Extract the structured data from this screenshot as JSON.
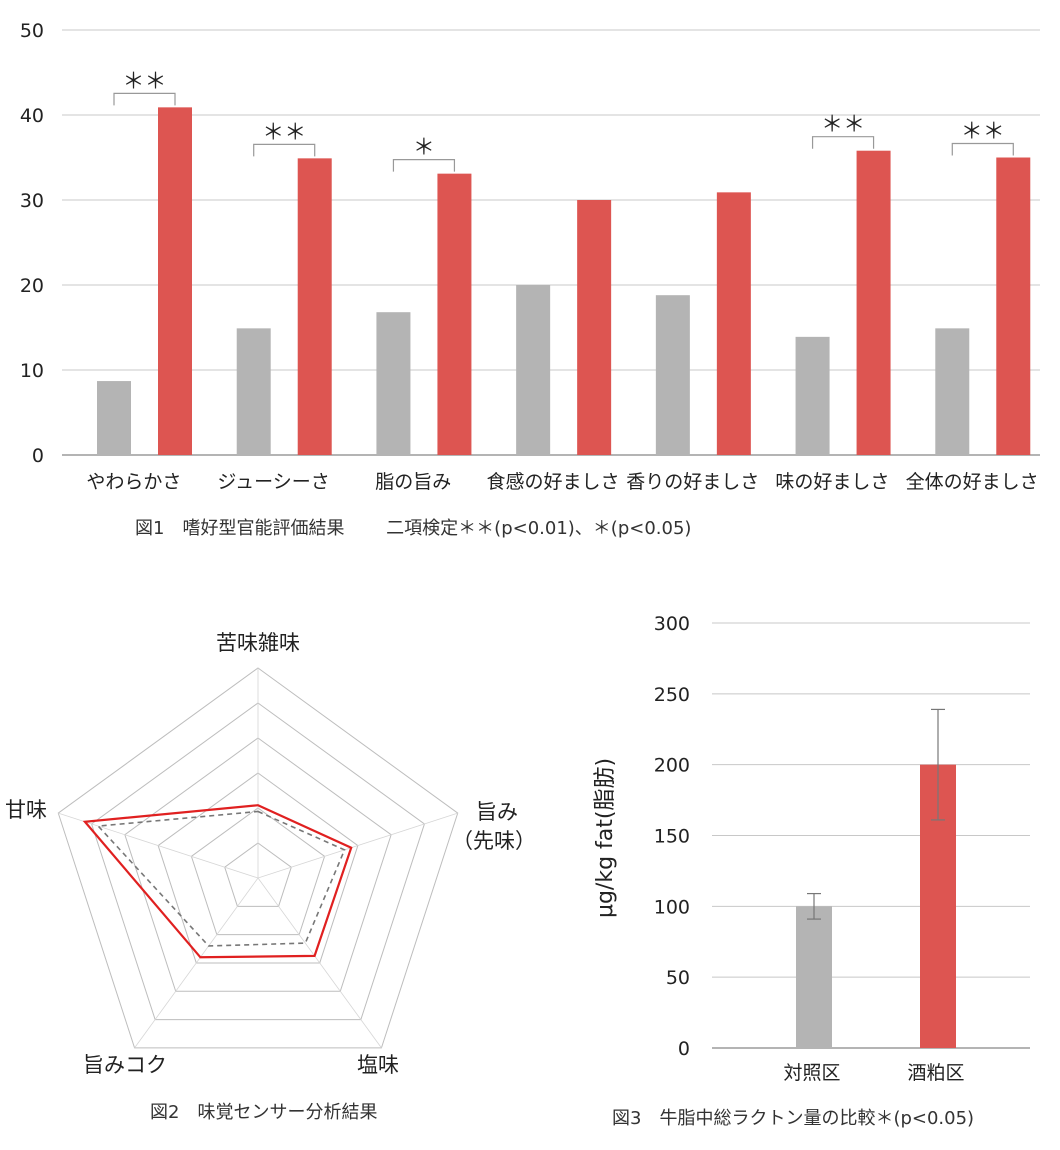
{
  "fig1": {
    "chart_data": {
      "type": "bar",
      "categories": [
        "やわらかさ",
        "ジューシーさ",
        "脂の旨み",
        "食感の好ましさ",
        "香りの好ましさ",
        "味の好ましさ",
        "全体の好ましさ"
      ],
      "series": [
        {
          "color": "#b4b4b4",
          "values": [
            8.7,
            14.9,
            16.8,
            20.0,
            18.8,
            13.9,
            14.9
          ]
        },
        {
          "color": "#dd5551",
          "values": [
            40.9,
            34.9,
            33.1,
            30.0,
            30.9,
            35.8,
            35.0
          ]
        }
      ],
      "significance": [
        "＊＊",
        "＊＊",
        "＊",
        "",
        "",
        "＊＊",
        "＊＊"
      ],
      "ylim": [
        0,
        50
      ],
      "yticks": [
        "0",
        "10",
        "20",
        "30",
        "40",
        "50"
      ],
      "grid": true
    },
    "caption": "図1　嗜好型官能評価結果　　 二項検定＊＊(p<0.01)、＊(p<0.05)"
  },
  "fig2": {
    "chart_data": {
      "type": "radar",
      "axes": [
        "苦味雑味",
        "旨み",
        "塩味",
        "旨みコク",
        "甘味"
      ],
      "axis_label_extra": {
        "1": "（先味）"
      },
      "rings": 6,
      "range": [
        0,
        6
      ],
      "series": [
        {
          "color": "#e02020",
          "style": "solid",
          "values": [
            2.08,
            2.8,
            2.75,
            2.8,
            5.2
          ]
        },
        {
          "color": "#777777",
          "style": "dashed",
          "values": [
            1.9,
            2.6,
            2.3,
            2.4,
            4.8
          ]
        }
      ]
    },
    "caption": "図2　味覚センサー分析結果"
  },
  "fig3": {
    "chart_data": {
      "type": "bar",
      "categories": [
        "対照区",
        "酒粕区"
      ],
      "values": [
        100,
        200
      ],
      "errors": [
        9,
        39
      ],
      "colors": [
        "#b4b4b4",
        "#dd5551"
      ],
      "ylabel": "μg/kg fat(脂肪)",
      "ylim": [
        0,
        300
      ],
      "yticks": [
        "0",
        "50",
        "100",
        "150",
        "200",
        "250",
        "300"
      ],
      "grid": true
    },
    "caption": "図3　牛脂中総ラクトン量の比較＊(p<0.05)"
  }
}
